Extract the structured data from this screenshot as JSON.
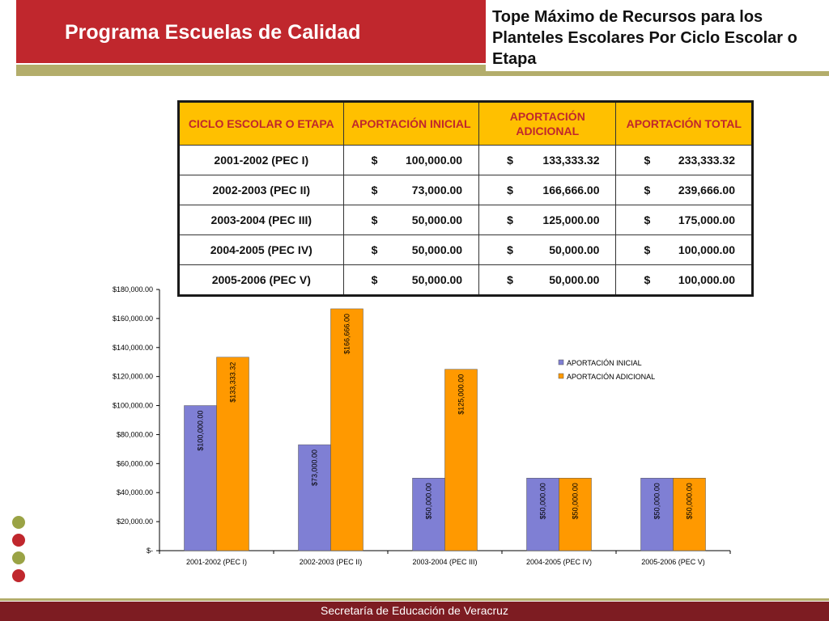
{
  "header": {
    "program_title": "Programa Escuelas de Calidad",
    "slide_title": "Tope Máximo de Recursos para los Planteles Escolares Por Ciclo Escolar o Etapa"
  },
  "table": {
    "headers": [
      "CICLO ESCOLAR O ETAPA",
      "APORTACIÓN INICIAL",
      "APORTACIÓN ADICIONAL",
      "APORTACIÓN TOTAL"
    ],
    "rows": [
      {
        "ciclo": "2001-2002 (PEC I)",
        "inicial": "100,000.00",
        "adicional": "133,333.32",
        "total": "233,333.32"
      },
      {
        "ciclo": "2002-2003 (PEC II)",
        "inicial": "73,000.00",
        "adicional": "166,666.00",
        "total": "239,666.00"
      },
      {
        "ciclo": "2003-2004 (PEC III)",
        "inicial": "50,000.00",
        "adicional": "125,000.00",
        "total": "175,000.00"
      },
      {
        "ciclo": "2004-2005 (PEC IV)",
        "inicial": "50,000.00",
        "adicional": "50,000.00",
        "total": "100,000.00"
      },
      {
        "ciclo": "2005-2006 (PEC V)",
        "inicial": "50,000.00",
        "adicional": "50,000.00",
        "total": "100,000.00"
      }
    ],
    "currency": "$"
  },
  "chart_data": {
    "type": "bar",
    "categories": [
      "2001-2002 (PEC I)",
      "2002-2003 (PEC II)",
      "2003-2004 (PEC III)",
      "2004-2005 (PEC IV)",
      "2005-2006 (PEC V)"
    ],
    "series": [
      {
        "name": "APORTACIÓN INICIAL",
        "values": [
          100000,
          73000,
          50000,
          50000,
          50000
        ],
        "color": "#7f7fd4",
        "labels": [
          "$100,000.00",
          "$73,000.00",
          "$50,000.00",
          "$50,000.00",
          "$50,000.00"
        ]
      },
      {
        "name": "APORTACIÓN ADICIONAL",
        "values": [
          133333.32,
          166666,
          125000,
          50000,
          50000
        ],
        "color": "#ff9900",
        "labels": [
          "$133,333.32",
          "$166,666.00",
          "$125,000.00",
          "$50,000.00",
          "$50,000.00"
        ]
      }
    ],
    "yticks": [
      {
        "value": 0,
        "label": "$-"
      },
      {
        "value": 20000,
        "label": "$20,000.00"
      },
      {
        "value": 40000,
        "label": "$40,000.00"
      },
      {
        "value": 60000,
        "label": "$60,000.00"
      },
      {
        "value": 80000,
        "label": "$80,000.00"
      },
      {
        "value": 100000,
        "label": "$100,000.00"
      },
      {
        "value": 120000,
        "label": "$120,000.00"
      },
      {
        "value": 140000,
        "label": "$140,000.00"
      },
      {
        "value": 160000,
        "label": "$160,000.00"
      },
      {
        "value": 180000,
        "label": "$180,000.00"
      }
    ],
    "ylim": [
      0,
      180000
    ],
    "grid": false,
    "legend": "right"
  },
  "decor": {
    "dots": [
      "#9aa345",
      "#c0272d",
      "#9aa345",
      "#c0272d"
    ]
  },
  "footer": {
    "text": "Secretaría de Educación de Veracruz"
  }
}
